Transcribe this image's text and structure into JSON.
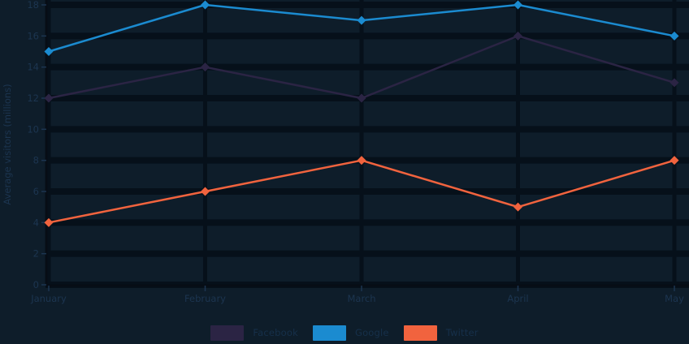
{
  "theme": {
    "background": "#0e1d2a",
    "gridline": "#06101a",
    "axis_spine": "#070d15",
    "tick_text": "#1c3550"
  },
  "chart_data": {
    "type": "line",
    "title": "",
    "xlabel": "",
    "ylabel": "Average visitors (millions)",
    "categories": [
      "January",
      "February",
      "March",
      "April",
      "May"
    ],
    "series": [
      {
        "name": "Facebook",
        "color": "#2b2444",
        "values": [
          12,
          14,
          12,
          16,
          13
        ]
      },
      {
        "name": "Google",
        "color": "#1b8bd0",
        "values": [
          15,
          18,
          17,
          18,
          16
        ]
      },
      {
        "name": "Twitter",
        "color": "#f1633e",
        "values": [
          4,
          6,
          8,
          5,
          8
        ]
      }
    ],
    "ylim": [
      0,
      18
    ],
    "ytick_step": 2,
    "ytick_labels": [
      "0",
      "2",
      "4",
      "6",
      "8",
      "10",
      "12",
      "14",
      "16",
      "18"
    ],
    "grid": true,
    "marker": "diamond",
    "legend_position": "bottom"
  }
}
